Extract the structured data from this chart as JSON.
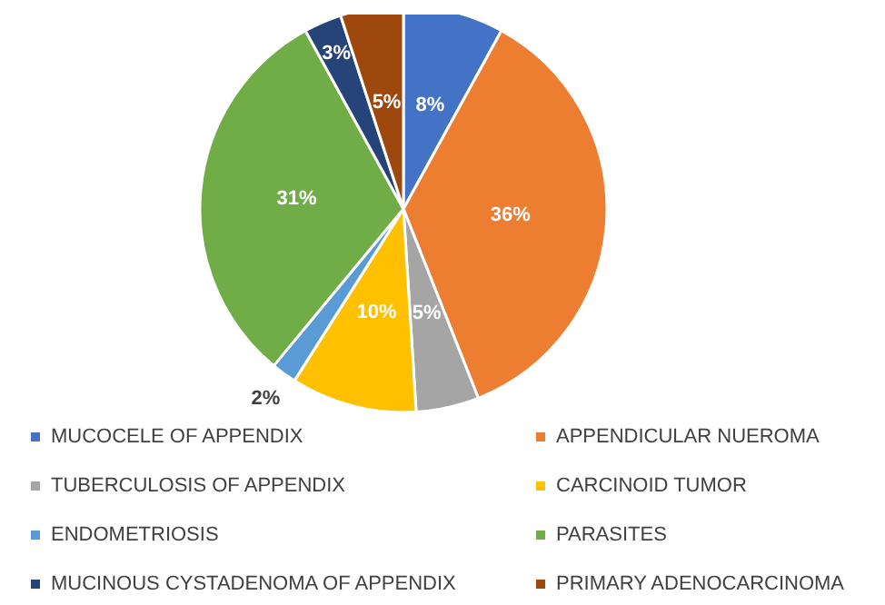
{
  "chart_data": {
    "type": "pie",
    "categories": [
      "MUCOCELE OF APPENDIX",
      "APPENDICULAR NUEROMA",
      "TUBERCULOSIS OF APPENDIX",
      "CARCINOID TUMOR",
      "ENDOMETRIOSIS",
      "PARASITES",
      "MUCINOUS CYSTADENOMA OF APPENDIX",
      "PRIMARY ADENOCARCINOMA"
    ],
    "values": [
      8,
      36,
      5,
      10,
      2,
      31,
      3,
      5
    ],
    "colors": [
      "#4472c4",
      "#ed7d31",
      "#a5a5a5",
      "#ffc000",
      "#5b9bd5",
      "#70ad47",
      "#264478",
      "#9e480e"
    ],
    "value_labels": [
      "8%",
      "36%",
      "5%",
      "10%",
      "2%",
      "31%",
      "3%",
      "5%"
    ],
    "legend": "bottom"
  }
}
